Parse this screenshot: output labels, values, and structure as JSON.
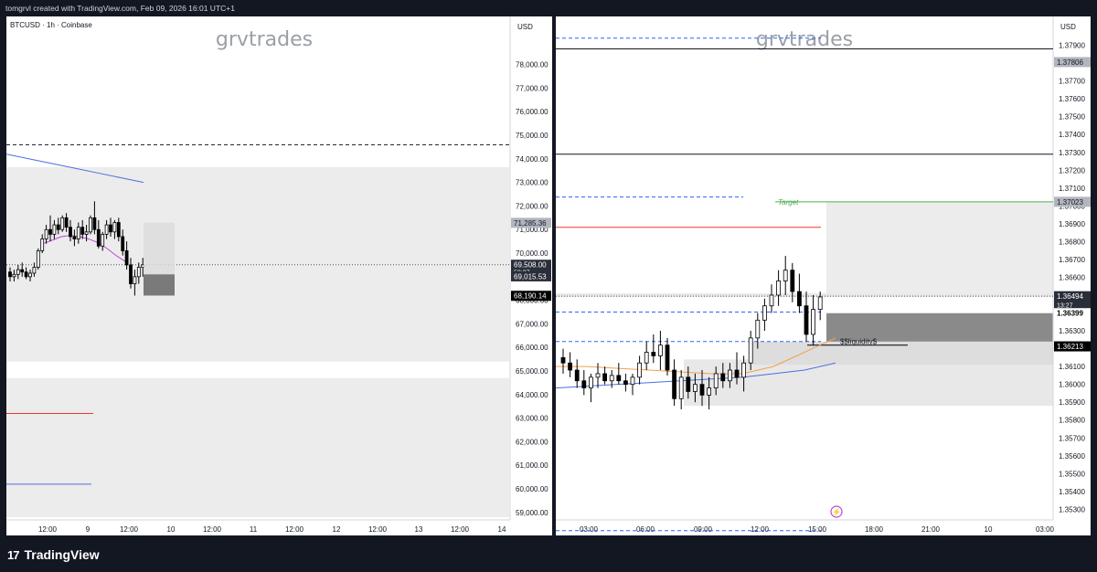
{
  "header": {
    "caption": "tomgrvl created with TradingView.com, Feb 09, 2026 16:01 UTC+1"
  },
  "footer": {
    "brand": "TradingView",
    "logo_glyph": "17"
  },
  "colors": {
    "background": "#131722",
    "panel": "#ffffff",
    "up": "#ffffff",
    "down": "#000000",
    "ema_blue": "#4c6fe0",
    "ema_purple": "#b44ad8",
    "ema_orange": "#f5a04a",
    "target": "#4caf50",
    "red_level": "#e53935",
    "dashed": "#2962ff",
    "zone": "#e6e6e6"
  },
  "chart_data": [
    {
      "type": "candlestick",
      "symbol_title": "BTCUSD · 1h · Coinbase",
      "currency": "USD",
      "watermark": "grvtrades",
      "ylim": [
        58800,
        78800
      ],
      "y_ticks": [
        "59,000.00",
        "60,000.00",
        "61,000.00",
        "62,000.00",
        "63,000.00",
        "64,000.00",
        "65,000.00",
        "66,000.00",
        "67,000.00",
        "68,000.00",
        "69,000.00",
        "70,000.00",
        "71,000.00",
        "72,000.00",
        "73,000.00",
        "74,000.00",
        "75,000.00",
        "76,000.00",
        "77,000.00",
        "78,000.00"
      ],
      "x_ticks": [
        "12:00",
        "9",
        "12:00",
        "10",
        "12:00",
        "11",
        "12:00",
        "12",
        "12:00",
        "13",
        "12:00",
        "14"
      ],
      "price_labels": [
        {
          "text": "71,285.36",
          "value": 71285.36,
          "style": "gray"
        },
        {
          "text": "69,508.00",
          "value": 69508,
          "style": "dark"
        },
        {
          "text": "58:27",
          "value": 69200,
          "style": "dark_small"
        },
        {
          "text": "69,015.53",
          "value": 69015.53,
          "style": "dark"
        },
        {
          "text": "68,190.14",
          "value": 68190.14,
          "style": "black"
        }
      ],
      "levels": [
        {
          "kind": "dashed_black",
          "value": 74600
        },
        {
          "kind": "dotted_current",
          "value": 69508
        }
      ],
      "zones": [
        {
          "y_top": 73650,
          "y_bottom": 65400
        },
        {
          "y_top": 64700,
          "y_bottom": 58800
        }
      ],
      "candles_ohlc": [
        [
          69200,
          69400,
          68800,
          69000
        ],
        [
          69000,
          69300,
          68800,
          69100
        ],
        [
          69100,
          69500,
          68900,
          69300
        ],
        [
          69300,
          69600,
          69000,
          69200
        ],
        [
          69200,
          69400,
          68900,
          69000
        ],
        [
          69000,
          69300,
          68800,
          69150
        ],
        [
          69150,
          69600,
          69000,
          69400
        ],
        [
          69400,
          70200,
          69300,
          70100
        ],
        [
          70100,
          70800,
          70000,
          70600
        ],
        [
          70600,
          71200,
          70400,
          71000
        ],
        [
          71000,
          71600,
          70500,
          70800
        ],
        [
          70800,
          71400,
          70600,
          71200
        ],
        [
          71200,
          71500,
          70800,
          71000
        ],
        [
          71000,
          71600,
          70900,
          71500
        ],
        [
          71500,
          71700,
          70900,
          71100
        ],
        [
          71100,
          71400,
          70500,
          70700
        ],
        [
          70700,
          71000,
          70300,
          70600
        ],
        [
          70600,
          71300,
          70400,
          71100
        ],
        [
          71100,
          71400,
          70600,
          70800
        ],
        [
          70800,
          71200,
          70500,
          70900
        ],
        [
          70900,
          71600,
          70800,
          71500
        ],
        [
          71500,
          72200,
          70800,
          71000
        ],
        [
          71000,
          71400,
          70200,
          70300
        ],
        [
          70300,
          70900,
          70100,
          70800
        ],
        [
          70800,
          71400,
          70600,
          71200
        ],
        [
          71200,
          71500,
          70700,
          70900
        ],
        [
          70900,
          71400,
          70600,
          71300
        ],
        [
          71300,
          71500,
          70500,
          70700
        ],
        [
          70700,
          71000,
          69900,
          70100
        ],
        [
          70100,
          70500,
          69300,
          69500
        ],
        [
          69500,
          69800,
          68500,
          68700
        ],
        [
          68700,
          69300,
          68200,
          69000
        ],
        [
          69000,
          69600,
          68700,
          69400
        ],
        [
          69400,
          69800,
          69000,
          69500
        ]
      ],
      "ema_purple": [
        70400,
        70550,
        70700,
        70750,
        70700,
        70600,
        70450,
        70200,
        69900,
        69650
      ],
      "ema_blue": [
        74200,
        74000,
        73800,
        73600,
        73400,
        73200,
        73000
      ]
    },
    {
      "type": "candlestick",
      "currency": "USD",
      "watermark": "grvtrades",
      "ylim": [
        1.3522,
        1.3799
      ],
      "y_ticks": [
        "1.35300",
        "1.35400",
        "1.35500",
        "1.35600",
        "1.35700",
        "1.35800",
        "1.35900",
        "1.36000",
        "1.36100",
        "1.36200",
        "1.36300",
        "1.36400",
        "1.36500",
        "1.36600",
        "1.36700",
        "1.36800",
        "1.36900",
        "1.37000",
        "1.37100",
        "1.37200",
        "1.37300",
        "1.37400",
        "1.37500",
        "1.37600",
        "1.37700",
        "1.37900"
      ],
      "x_ticks": [
        "03:00",
        "06:00",
        "09:00",
        "12:00",
        "15:00",
        "18:00",
        "21:00",
        "10",
        "03:00"
      ],
      "price_labels": [
        {
          "text": "1.37806",
          "value": 1.37806,
          "style": "gray"
        },
        {
          "text": "1.37023",
          "value": 1.37023,
          "style": "gray"
        },
        {
          "text": "1.36494",
          "value": 1.36494,
          "style": "dark"
        },
        {
          "text": "13:27",
          "value": 1.36445,
          "style": "dark_small"
        },
        {
          "text": "1.36399",
          "value": 1.36399,
          "style": "black_text"
        },
        {
          "text": "1.36213",
          "value": 1.36213,
          "style": "black"
        }
      ],
      "annotations": [
        {
          "text": "Target",
          "value": 1.37023
        },
        {
          "text": "$$liquidity$",
          "value": 1.3622
        }
      ],
      "levels": [
        {
          "kind": "solid_black",
          "value": 1.3788
        },
        {
          "kind": "solid_black",
          "value": 1.3729
        },
        {
          "kind": "target_green",
          "value": 1.37023
        },
        {
          "kind": "solid_red",
          "value": 1.3688
        },
        {
          "kind": "dashed_blue",
          "value": 1.3794
        },
        {
          "kind": "dashed_blue",
          "value": 1.3705
        },
        {
          "kind": "dashed_blue",
          "value": 1.36405
        },
        {
          "kind": "dashed_blue",
          "value": 1.3624
        },
        {
          "kind": "dashed_blue",
          "value": 1.3518
        },
        {
          "kind": "dotted_current",
          "value": 1.36494
        }
      ],
      "candles_ohlc": [
        [
          1.3615,
          1.362,
          1.3606,
          1.3612
        ],
        [
          1.3612,
          1.3618,
          1.3604,
          1.3608
        ],
        [
          1.3608,
          1.3614,
          1.3598,
          1.3602
        ],
        [
          1.3602,
          1.3608,
          1.3594,
          1.3598
        ],
        [
          1.3598,
          1.3606,
          1.359,
          1.3604
        ],
        [
          1.3604,
          1.3612,
          1.3598,
          1.3606
        ],
        [
          1.3606,
          1.361,
          1.36,
          1.3602
        ],
        [
          1.3602,
          1.3608,
          1.3598,
          1.3605
        ],
        [
          1.3605,
          1.3612,
          1.36,
          1.3602
        ],
        [
          1.3602,
          1.3606,
          1.3596,
          1.36
        ],
        [
          1.36,
          1.3606,
          1.3594,
          1.3604
        ],
        [
          1.3604,
          1.3616,
          1.36,
          1.3612
        ],
        [
          1.3612,
          1.3624,
          1.3608,
          1.3618
        ],
        [
          1.3618,
          1.3628,
          1.3612,
          1.3616
        ],
        [
          1.3616,
          1.363,
          1.3608,
          1.3622
        ],
        [
          1.3622,
          1.3626,
          1.3605,
          1.3608
        ],
        [
          1.3608,
          1.3614,
          1.3588,
          1.3592
        ],
        [
          1.3592,
          1.3608,
          1.3586,
          1.3604
        ],
        [
          1.3604,
          1.361,
          1.3592,
          1.3596
        ],
        [
          1.3596,
          1.3606,
          1.359,
          1.36
        ],
        [
          1.36,
          1.3608,
          1.3588,
          1.3594
        ],
        [
          1.3594,
          1.3604,
          1.3586,
          1.3598
        ],
        [
          1.3598,
          1.361,
          1.3594,
          1.3606
        ],
        [
          1.3606,
          1.3612,
          1.3598,
          1.3602
        ],
        [
          1.3602,
          1.3612,
          1.3598,
          1.3608
        ],
        [
          1.3608,
          1.3618,
          1.36,
          1.3604
        ],
        [
          1.3604,
          1.3616,
          1.3596,
          1.3612
        ],
        [
          1.3612,
          1.363,
          1.3608,
          1.3626
        ],
        [
          1.3626,
          1.364,
          1.362,
          1.3636
        ],
        [
          1.3636,
          1.3648,
          1.363,
          1.3644
        ],
        [
          1.3644,
          1.3656,
          1.364,
          1.365
        ],
        [
          1.365,
          1.3664,
          1.3644,
          1.3658
        ],
        [
          1.3658,
          1.3672,
          1.365,
          1.3664
        ],
        [
          1.3664,
          1.3668,
          1.3646,
          1.3652
        ],
        [
          1.3652,
          1.3662,
          1.364,
          1.3644
        ],
        [
          1.3644,
          1.3652,
          1.3624,
          1.3628
        ],
        [
          1.3628,
          1.365,
          1.3622,
          1.3642
        ],
        [
          1.3642,
          1.3652,
          1.3636,
          1.3649
        ]
      ],
      "ema_blue": [
        1.3598,
        1.3599,
        1.36,
        1.3601,
        1.3602,
        1.3603,
        1.3604,
        1.3606,
        1.3608,
        1.3612
      ],
      "ema_orange": [
        1.361,
        1.361,
        1.3609,
        1.3608,
        1.3607,
        1.3606,
        1.3606,
        1.361,
        1.3618,
        1.3626
      ]
    }
  ]
}
